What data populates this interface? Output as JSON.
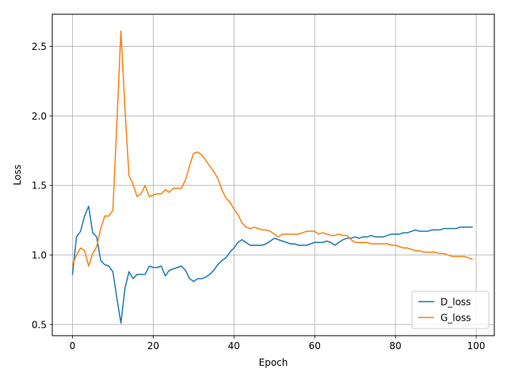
{
  "chart_data": {
    "type": "line",
    "title": "",
    "xlabel": "Epoch",
    "ylabel": "Loss",
    "xlim": [
      -5,
      104.5
    ],
    "ylim": [
      0.42,
      2.73
    ],
    "xticks": [
      0,
      20,
      40,
      60,
      80,
      100
    ],
    "yticks": [
      0.5,
      1.0,
      1.5,
      2.0,
      2.5
    ],
    "xtick_labels": [
      "0",
      "20",
      "40",
      "60",
      "80",
      "100"
    ],
    "ytick_labels": [
      "0.5",
      "1.0",
      "1.5",
      "2.0",
      "2.5"
    ],
    "grid": true,
    "legend_position": "lower-right",
    "x": [
      0,
      1,
      2,
      3,
      4,
      5,
      6,
      7,
      8,
      9,
      10,
      11,
      12,
      13,
      14,
      15,
      16,
      17,
      18,
      19,
      20,
      21,
      22,
      23,
      24,
      25,
      26,
      27,
      28,
      29,
      30,
      31,
      32,
      33,
      34,
      35,
      36,
      37,
      38,
      39,
      40,
      41,
      42,
      43,
      44,
      45,
      46,
      47,
      48,
      49,
      50,
      51,
      52,
      53,
      54,
      55,
      56,
      57,
      58,
      59,
      60,
      61,
      62,
      63,
      64,
      65,
      66,
      67,
      68,
      69,
      70,
      71,
      72,
      73,
      74,
      75,
      76,
      77,
      78,
      79,
      80,
      81,
      82,
      83,
      84,
      85,
      86,
      87,
      88,
      89,
      90,
      91,
      92,
      93,
      94,
      95,
      96,
      97,
      98,
      99
    ],
    "series": [
      {
        "name": "D_loss",
        "color": "#1f77b4",
        "values": [
          0.86,
          1.13,
          1.17,
          1.28,
          1.35,
          1.16,
          1.13,
          0.96,
          0.93,
          0.92,
          0.88,
          0.69,
          0.51,
          0.76,
          0.88,
          0.83,
          0.86,
          0.86,
          0.86,
          0.92,
          0.91,
          0.91,
          0.92,
          0.85,
          0.89,
          0.9,
          0.91,
          0.92,
          0.89,
          0.83,
          0.81,
          0.83,
          0.83,
          0.84,
          0.86,
          0.89,
          0.93,
          0.96,
          0.98,
          1.02,
          1.05,
          1.09,
          1.11,
          1.09,
          1.07,
          1.07,
          1.07,
          1.07,
          1.08,
          1.1,
          1.12,
          1.11,
          1.1,
          1.09,
          1.08,
          1.08,
          1.07,
          1.07,
          1.07,
          1.08,
          1.09,
          1.09,
          1.09,
          1.1,
          1.09,
          1.07,
          1.09,
          1.11,
          1.12,
          1.12,
          1.13,
          1.12,
          1.13,
          1.13,
          1.14,
          1.13,
          1.13,
          1.13,
          1.14,
          1.15,
          1.15,
          1.15,
          1.16,
          1.16,
          1.17,
          1.18,
          1.17,
          1.17,
          1.17,
          1.18,
          1.18,
          1.18,
          1.19,
          1.19,
          1.19,
          1.19,
          1.2,
          1.2,
          1.2,
          1.2
        ]
      },
      {
        "name": "G_loss",
        "color": "#ff7f0e",
        "values": [
          0.93,
          1.0,
          1.05,
          1.03,
          0.92,
          1.01,
          1.06,
          1.19,
          1.28,
          1.28,
          1.32,
          1.95,
          2.61,
          2.05,
          1.57,
          1.51,
          1.42,
          1.44,
          1.5,
          1.42,
          1.43,
          1.44,
          1.44,
          1.47,
          1.45,
          1.48,
          1.48,
          1.48,
          1.54,
          1.64,
          1.73,
          1.74,
          1.72,
          1.68,
          1.64,
          1.6,
          1.55,
          1.47,
          1.41,
          1.38,
          1.33,
          1.29,
          1.23,
          1.2,
          1.19,
          1.2,
          1.19,
          1.18,
          1.18,
          1.17,
          1.15,
          1.13,
          1.15,
          1.15,
          1.15,
          1.15,
          1.15,
          1.16,
          1.17,
          1.17,
          1.17,
          1.15,
          1.16,
          1.15,
          1.14,
          1.14,
          1.15,
          1.14,
          1.14,
          1.11,
          1.09,
          1.09,
          1.09,
          1.09,
          1.08,
          1.08,
          1.08,
          1.08,
          1.08,
          1.07,
          1.07,
          1.06,
          1.05,
          1.05,
          1.04,
          1.03,
          1.03,
          1.02,
          1.02,
          1.02,
          1.02,
          1.01,
          1.01,
          1.0,
          0.99,
          0.99,
          0.99,
          0.99,
          0.98,
          0.97
        ]
      }
    ]
  }
}
